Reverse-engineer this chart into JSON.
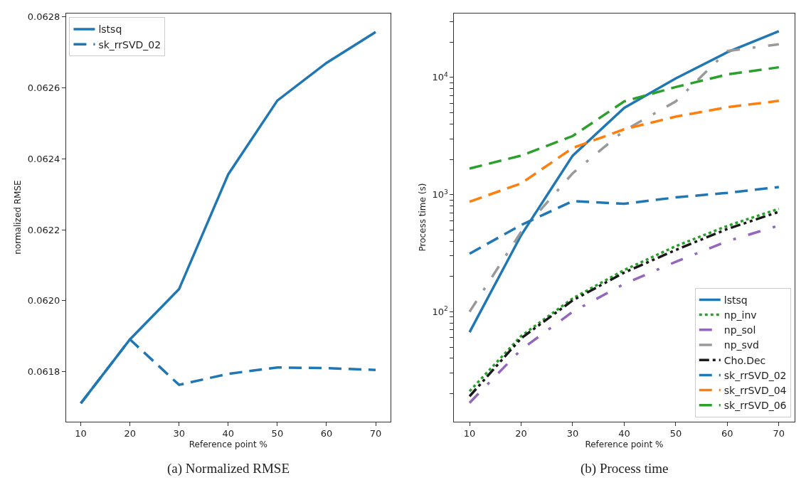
{
  "chart_data": [
    {
      "type": "line",
      "xlabel": "Reference point %",
      "ylabel": "normalized RMSE",
      "x": [
        10,
        20,
        30,
        40,
        50,
        60,
        70
      ],
      "xlim": [
        7,
        73
      ],
      "xticks": [
        10,
        20,
        30,
        40,
        50,
        60,
        70
      ],
      "ylim": [
        0.06166,
        0.06281
      ],
      "yticks": [
        {
          "value": 0.0618,
          "label": "0.0618"
        },
        {
          "value": 0.062,
          "label": "0.0620"
        },
        {
          "value": 0.0622,
          "label": "0.0622"
        },
        {
          "value": 0.0624,
          "label": "0.0624"
        },
        {
          "value": 0.0626,
          "label": "0.0626"
        },
        {
          "value": 0.0628,
          "label": "0.0628"
        }
      ],
      "legend": "top left",
      "annotations": [
        "(a) Normalized RMSE"
      ],
      "series": [
        {
          "name": "lstsq",
          "color": "#1f77b4",
          "line_style": "solid",
          "values": [
            0.061711,
            0.061891,
            0.062033,
            0.062356,
            0.062564,
            0.06267,
            0.062757
          ]
        },
        {
          "name": "sk_rrSVD_02",
          "color": "#1f77b4",
          "line_style": "dashed",
          "values": [
            0.061711,
            0.061891,
            0.061763,
            0.061794,
            0.061812,
            0.06181,
            0.061805
          ]
        }
      ]
    },
    {
      "type": "line",
      "xlabel": "Reference point %",
      "ylabel": "Process time (s)",
      "log": true,
      "x": [
        10,
        20,
        30,
        40,
        50,
        60,
        70
      ],
      "xlim": [
        7,
        73
      ],
      "xticks": [
        10,
        20,
        30,
        40,
        50,
        60,
        70
      ],
      "ylim": [
        11.6,
        35300
      ],
      "yticks": [
        {
          "value": 20,
          "label": null
        },
        {
          "value": 30,
          "label": null
        },
        {
          "value": 40,
          "label": null
        },
        {
          "value": 50,
          "label": null
        },
        {
          "value": 60,
          "label": null
        },
        {
          "value": 70,
          "label": null
        },
        {
          "value": 80,
          "label": null
        },
        {
          "value": 90,
          "label": null
        },
        {
          "value": 100,
          "label": "10$^{2}$"
        },
        {
          "value": 200,
          "label": null
        },
        {
          "value": 300,
          "label": null
        },
        {
          "value": 400,
          "label": null
        },
        {
          "value": 500,
          "label": null
        },
        {
          "value": 600,
          "label": null
        },
        {
          "value": 700,
          "label": null
        },
        {
          "value": 800,
          "label": null
        },
        {
          "value": 900,
          "label": null
        },
        {
          "value": 1000,
          "label": "10$^{3}$"
        },
        {
          "value": 2000,
          "label": null
        },
        {
          "value": 3000,
          "label": null
        },
        {
          "value": 4000,
          "label": null
        },
        {
          "value": 5000,
          "label": null
        },
        {
          "value": 6000,
          "label": null
        },
        {
          "value": 7000,
          "label": null
        },
        {
          "value": 8000,
          "label": null
        },
        {
          "value": 9000,
          "label": null
        },
        {
          "value": 10000,
          "label": "10$^{4}$"
        },
        {
          "value": 20000,
          "label": null
        },
        {
          "value": 30000,
          "label": null
        }
      ],
      "legend": "bottom right",
      "annotations": [
        "(b) Process time"
      ],
      "series": [
        {
          "name": "lstsq",
          "color": "#1f77b4",
          "line_style": "solid",
          "values": [
            67,
            450,
            2150,
            5500,
            9800,
            16400,
            24800
          ]
        },
        {
          "name": "np_inv",
          "color": "#2ca02c",
          "line_style": "dotted",
          "values": [
            21,
            62,
            130,
            227,
            363,
            540,
            757
          ]
        },
        {
          "name": "np_sol",
          "color": "#9467bd",
          "line_style": "dashdot",
          "values": [
            16.7,
            47.5,
            100,
            173,
            267,
            400,
            545
          ]
        },
        {
          "name": "np_svd",
          "color": "#999999",
          "line_style": "dashdot",
          "values": [
            100,
            480,
            1520,
            3520,
            6240,
            16800,
            19200
          ]
        },
        {
          "name": "Cho.Dec",
          "color": "#1a1a1a",
          "line_style": "dashdotdot",
          "values": [
            19,
            59.4,
            125,
            216,
            337,
            509,
            713
          ]
        },
        {
          "name": "sk_rrSVD_02",
          "color": "#1f77b4",
          "line_style": "dashed",
          "values": [
            313,
            550,
            880,
            835,
            946,
            1035,
            1160
          ]
        },
        {
          "name": "sk_rrSVD_04",
          "color": "#ff7f0e",
          "line_style": "dashed",
          "values": [
            870,
            1245,
            2500,
            3610,
            4630,
            5570,
            6310
          ]
        },
        {
          "name": "sk_rrSVD_06",
          "color": "#2ca02c",
          "line_style": "dashed",
          "values": [
            1670,
            2150,
            3160,
            6240,
            8280,
            10600,
            12200
          ]
        }
      ]
    }
  ]
}
